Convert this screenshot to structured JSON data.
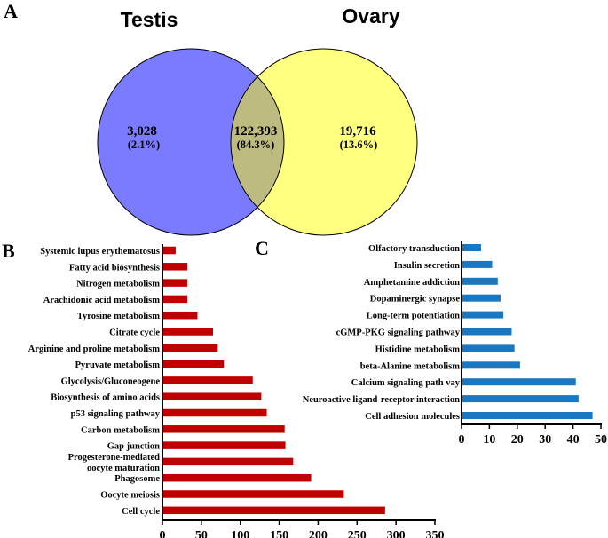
{
  "panels": {
    "a": "A",
    "b": "B",
    "c": "C"
  },
  "venn": {
    "left": {
      "title": "Testis",
      "count": "3,028",
      "percent": "(2.1%)",
      "color": "#7b7bff"
    },
    "right": {
      "title": "Ovary",
      "count": "19,716",
      "percent": "(13.6%)",
      "color": "#ffff80"
    },
    "overlap": {
      "count": "122,393",
      "percent": "(84.3%)",
      "color": "#bdbb80"
    }
  },
  "chart_data": [
    {
      "type": "bar",
      "orientation": "horizontal",
      "color": "#c00000",
      "title": "",
      "xlabel": "",
      "ylabel": "",
      "xlim": [
        0,
        350
      ],
      "ticks": [
        0,
        50,
        100,
        150,
        200,
        250,
        300,
        350
      ],
      "grid": false,
      "categories": [
        "Systemic lupus erythematosus",
        "Fatty acid biosynthesis",
        "Nitrogen metabolism",
        "Arachidonic acid metabolism",
        "Tyrosine metabolism",
        "Citrate cycle",
        "Arginine and proline metabolism",
        "Pyruvate metabolism",
        "Glycolysis/Gluconeogene",
        "Biosynthesis of amino acids",
        "p53 signaling pathway",
        "Carbon metabolism",
        "Gap junction",
        "Progesterone-mediated oocyte maturation",
        "Phagosome",
        "Oocyte meiosis",
        "Cell cycle"
      ],
      "label_lines": [
        [
          "Systemic lupus erythematosus"
        ],
        [
          "Fatty acid biosynthesis"
        ],
        [
          "Nitrogen metabolism"
        ],
        [
          "Arachidonic acid metabolism"
        ],
        [
          "Tyrosine metabolism"
        ],
        [
          "Citrate cycle"
        ],
        [
          "Arginine and proline metabolism"
        ],
        [
          "Pyruvate metabolism"
        ],
        [
          "Glycolysis/Gluconeogene"
        ],
        [
          "Biosynthesis of amino acids"
        ],
        [
          "p53 signaling pathway"
        ],
        [
          "Carbon metabolism"
        ],
        [
          "Gap junction"
        ],
        [
          "Progesterone-mediated",
          "oocyte maturation"
        ],
        [
          "Phagosome"
        ],
        [
          "Oocyte meiosis"
        ],
        [
          "Cell cycle"
        ]
      ],
      "values": [
        17,
        32,
        32,
        32,
        45,
        65,
        71,
        79,
        116,
        127,
        134,
        157,
        158,
        168,
        191,
        233,
        286
      ]
    },
    {
      "type": "bar",
      "orientation": "horizontal",
      "color": "#1a78c2",
      "title": "",
      "xlabel": "",
      "ylabel": "",
      "xlim": [
        0,
        50
      ],
      "ticks": [
        0,
        10,
        20,
        30,
        40,
        50
      ],
      "grid": false,
      "categories": [
        "Olfactory transduction",
        "Insulin secretion",
        "Amphetamine addiction",
        "Dopaminergic synapse",
        "Long-term potentiation",
        "cGMP-PKG signaling pathway",
        "Histidine metabolism",
        "beta-Alanine metabolism",
        "Calcium signaling path vay",
        "Neuroactive ligand-receptor interaction",
        "Cell adhesion molecules"
      ],
      "label_lines": [
        [
          "Olfactory transduction"
        ],
        [
          "Insulin secretion"
        ],
        [
          "Amphetamine addiction"
        ],
        [
          "Dopaminergic synapse"
        ],
        [
          "Long-term potentiation"
        ],
        [
          "cGMP-PKG signaling pathway"
        ],
        [
          "Histidine metabolism"
        ],
        [
          "beta-Alanine metabolism"
        ],
        [
          "Calcium signaling path vay"
        ],
        [
          "Neuroactive ligand-receptor interaction"
        ],
        [
          "Cell adhesion molecules"
        ]
      ],
      "values": [
        7,
        11,
        13,
        14,
        15,
        18,
        19,
        21,
        41,
        42,
        47
      ]
    }
  ]
}
